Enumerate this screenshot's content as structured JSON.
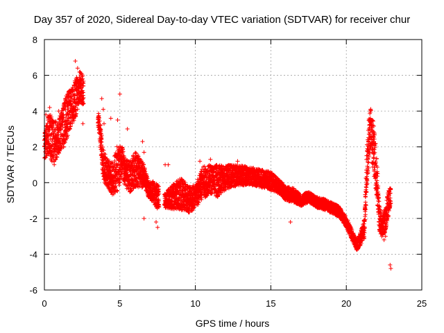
{
  "chart_data": {
    "type": "scatter",
    "title": "Day 357 of 2020, Sidereal Day-to-day VTEC variation (SDTVAR) for receiver chur",
    "xlabel": "GPS time / hours",
    "ylabel": "SDTVAR / TECUs",
    "xlim": [
      0,
      25
    ],
    "ylim": [
      -6,
      8
    ],
    "xticks": [
      0,
      5,
      10,
      15,
      20,
      25
    ],
    "yticks": [
      -6,
      -4,
      -2,
      0,
      2,
      4,
      6,
      8
    ],
    "grid": true,
    "marker": "+",
    "series_color": "#ff0000",
    "series": [
      {
        "name": "SDTVAR",
        "trend_x": [
          0.0,
          0.3,
          0.6,
          0.9,
          1.2,
          1.5,
          1.8,
          2.1,
          2.4,
          3.6,
          3.9,
          4.2,
          4.5,
          4.8,
          5.1,
          5.4,
          5.7,
          6.0,
          6.3,
          6.6,
          6.9,
          7.2,
          7.5,
          8.0,
          8.5,
          9.0,
          9.5,
          10.0,
          10.5,
          11.0,
          11.5,
          12.0,
          12.5,
          13.0,
          13.5,
          14.0,
          14.5,
          15.0,
          15.5,
          16.0,
          16.5,
          17.0,
          17.5,
          18.0,
          18.5,
          19.0,
          19.5,
          20.0,
          20.4,
          20.7,
          21.0,
          21.2,
          21.4,
          21.6,
          21.8,
          22.0,
          22.2,
          22.4,
          22.6,
          22.8,
          22.95
        ],
        "trend_y": [
          2.0,
          2.8,
          2.2,
          2.5,
          3.0,
          3.8,
          4.2,
          4.8,
          5.4,
          3.5,
          1.0,
          0.5,
          0.2,
          0.7,
          1.2,
          0.5,
          0.3,
          0.8,
          0.5,
          0.4,
          -0.4,
          -0.5,
          -0.8,
          -1.0,
          -0.8,
          -0.6,
          -0.9,
          -0.8,
          0.0,
          0.2,
          0.1,
          0.3,
          0.4,
          0.4,
          0.4,
          0.3,
          0.2,
          0.1,
          -0.2,
          -0.6,
          -0.7,
          -1.0,
          -0.8,
          -1.1,
          -1.2,
          -1.4,
          -1.6,
          -2.2,
          -3.0,
          -3.5,
          -3.0,
          -2.5,
          1.5,
          3.0,
          2.0,
          0.5,
          -2.0,
          -2.5,
          -2.0,
          -1.0,
          -0.8
        ],
        "trend_spread": [
          0.7,
          1.2,
          1.3,
          1.0,
          1.2,
          1.3,
          1.0,
          1.1,
          0.9,
          0.5,
          0.9,
          0.8,
          0.9,
          1.3,
          1.0,
          0.8,
          0.9,
          1.0,
          0.9,
          0.6,
          0.4,
          0.6,
          0.7,
          0.4,
          0.7,
          0.9,
          0.8,
          0.7,
          0.9,
          0.8,
          0.9,
          0.7,
          0.6,
          0.6,
          0.5,
          0.5,
          0.5,
          0.5,
          0.4,
          0.4,
          0.4,
          0.3,
          0.3,
          0.3,
          0.3,
          0.3,
          0.3,
          0.3,
          0.3,
          0.3,
          0.4,
          0.6,
          1.5,
          1.2,
          1.5,
          1.2,
          0.8,
          0.6,
          0.7,
          0.8,
          0.5
        ],
        "outliers": [
          [
            0.1,
            3.8
          ],
          [
            0.35,
            4.2
          ],
          [
            0.95,
            4.0
          ],
          [
            2.05,
            6.8
          ],
          [
            2.2,
            6.4
          ],
          [
            2.5,
            5.8
          ],
          [
            2.55,
            3.3
          ],
          [
            3.8,
            4.7
          ],
          [
            3.9,
            4.1
          ],
          [
            3.95,
            3.3
          ],
          [
            4.4,
            3.6
          ],
          [
            4.85,
            3.5
          ],
          [
            5.0,
            4.95
          ],
          [
            5.5,
            3.0
          ],
          [
            6.5,
            2.3
          ],
          [
            6.6,
            1.7
          ],
          [
            6.6,
            -2.0
          ],
          [
            7.4,
            -2.2
          ],
          [
            7.5,
            -2.5
          ],
          [
            8.0,
            1.0
          ],
          [
            8.2,
            1.0
          ],
          [
            10.3,
            1.2
          ],
          [
            11.0,
            1.3
          ],
          [
            12.8,
            1.2
          ],
          [
            16.3,
            -2.2
          ],
          [
            21.5,
            3.0
          ],
          [
            21.7,
            3.5
          ],
          [
            22.5,
            -3.2
          ],
          [
            22.6,
            -3.0
          ],
          [
            22.9,
            -4.6
          ],
          [
            22.95,
            -4.8
          ]
        ],
        "gaps": [
          [
            2.6,
            3.55
          ],
          [
            7.6,
            7.95
          ]
        ]
      }
    ]
  }
}
